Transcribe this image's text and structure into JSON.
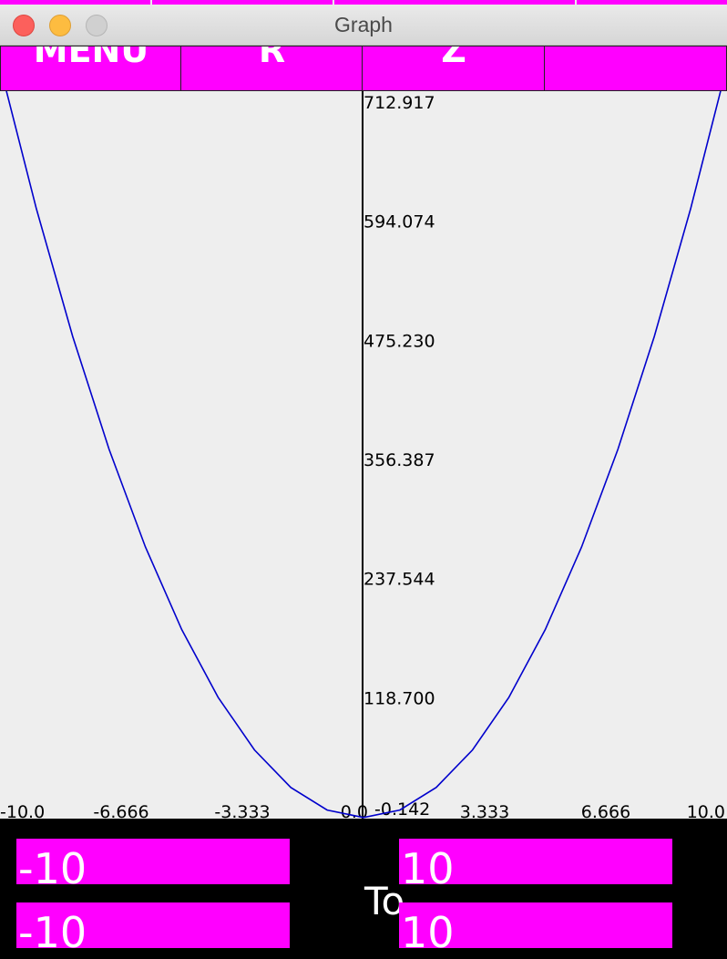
{
  "window": {
    "title": "Graph"
  },
  "menu": {
    "buttons": [
      "MENU",
      "R",
      "Z",
      ""
    ]
  },
  "graph": {
    "y_labels": [
      "712.917",
      "594.074",
      "475.230",
      "356.387",
      "237.544",
      "118.700",
      "-0.142"
    ],
    "x_labels": [
      "-10.0",
      "-6.666",
      "-3.333",
      "0.0",
      "3.333",
      "6.666",
      "10.0"
    ],
    "curve_color": "#0000cc"
  },
  "controls": {
    "x_from": "-10",
    "x_to": "10",
    "y_from": "-10",
    "y_to": "10",
    "to_label": "To"
  },
  "chart_data": {
    "type": "line",
    "title": "",
    "xlabel": "",
    "ylabel": "",
    "xlim": [
      -10,
      10
    ],
    "ylim": [
      -0.142,
      712.917
    ],
    "grid": false,
    "x_ticks": [
      -10.0,
      -6.666,
      -3.333,
      0.0,
      3.333,
      6.666,
      10.0
    ],
    "y_ticks": [
      -0.142,
      118.7,
      237.544,
      356.387,
      475.23,
      594.074,
      712.917
    ],
    "series": [
      {
        "x": [
          -10,
          -9,
          -8,
          -7,
          -6,
          -5,
          -4,
          -3,
          -2,
          -1,
          0,
          1,
          2,
          3,
          4,
          5,
          6,
          7,
          8,
          9,
          10
        ],
        "y": [
          750,
          607.5,
          480,
          367.5,
          270,
          187.5,
          120,
          67.5,
          30,
          7.5,
          0,
          7.5,
          30,
          67.5,
          120,
          187.5,
          270,
          367.5,
          480,
          607.5,
          750
        ]
      }
    ]
  }
}
